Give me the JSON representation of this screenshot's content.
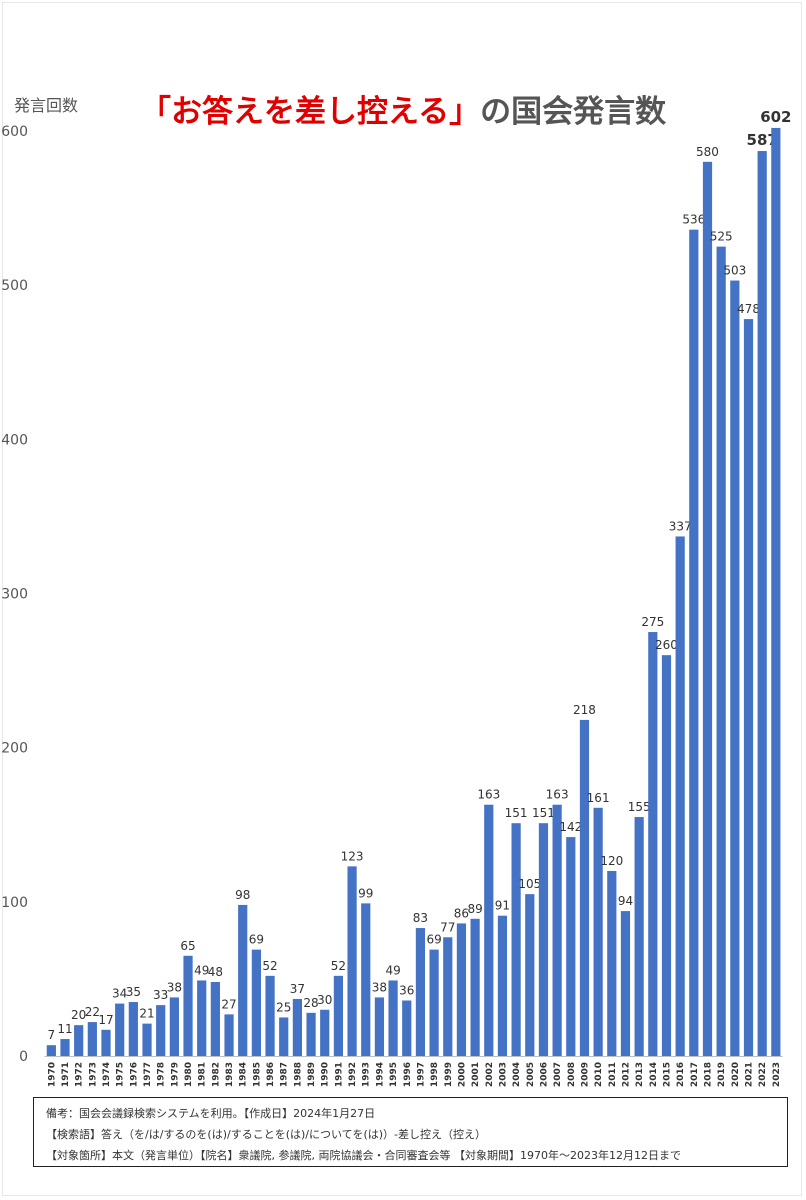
{
  "chart_data": {
    "type": "bar",
    "title": "の国会発言数",
    "title_highlight": "「お答えを差し控える」",
    "ylabel": "発言回数",
    "xlabel": "",
    "ylim": [
      0,
      600
    ],
    "yticks": [
      0,
      100,
      200,
      300,
      400,
      500,
      600
    ],
    "grid": false,
    "bar_color": "#4472c4",
    "title_highlight_color": "#e00000",
    "bold_labels": [
      "2022",
      "2023"
    ],
    "categories": [
      "1970",
      "1971",
      "1972",
      "1973",
      "1974",
      "1975",
      "1976",
      "1977",
      "1978",
      "1979",
      "1980",
      "1981",
      "1982",
      "1983",
      "1984",
      "1985",
      "1986",
      "1987",
      "1988",
      "1989",
      "1990",
      "1991",
      "1992",
      "1993",
      "1994",
      "1995",
      "1996",
      "1997",
      "1998",
      "1999",
      "2000",
      "2001",
      "2002",
      "2003",
      "2004",
      "2005",
      "2006",
      "2007",
      "2008",
      "2009",
      "2010",
      "2011",
      "2012",
      "2013",
      "2014",
      "2015",
      "2016",
      "2017",
      "2018",
      "2019",
      "2020",
      "2021",
      "2022",
      "2023"
    ],
    "values": [
      7,
      11,
      20,
      22,
      17,
      34,
      35,
      21,
      33,
      38,
      65,
      49,
      48,
      27,
      98,
      69,
      52,
      25,
      37,
      28,
      30,
      52,
      123,
      99,
      38,
      49,
      36,
      83,
      69,
      77,
      86,
      89,
      163,
      91,
      151,
      105,
      151,
      163,
      142,
      218,
      161,
      120,
      94,
      155,
      275,
      260,
      337,
      536,
      580,
      525,
      503,
      478,
      587,
      602
    ]
  },
  "notes": {
    "line1": "備考：国会会議録検索システムを利用。【作成日】2024年1月27日",
    "line2": "【検索語】答え（を/は/するのを(は)/することを(は)/についてを(は)）-差し控え（控え）",
    "line3": "【対象箇所】本文（発言単位）【院名】衆議院, 参議院, 両院協議会・合同審査会等 【対象期間】1970年～2023年12月12日まで"
  }
}
